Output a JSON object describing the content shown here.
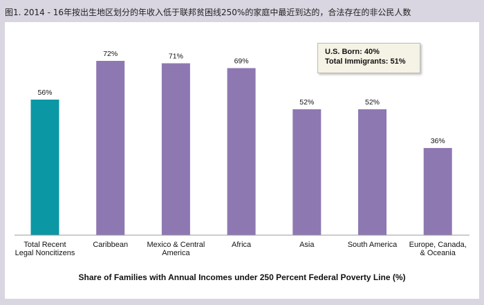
{
  "figure_title": "图1. 2014 - 16年按出生地区划分的年收入低于联邦贫困线250%的家庭中最近到达的，合法存在的非公民人数",
  "callout": {
    "line1": "U.S. Born: 40%",
    "line2": "Total Immigrants: 51%"
  },
  "chart_data": {
    "type": "bar",
    "title": "图1. 2014 - 16年按出生地区划分的年收入低于联邦贫困线250%的家庭中最近到达的，合法存在的非公民人数",
    "xlabel": "Share of Families with Annual Incomes under 250 Percent Federal Poverty Line (%)",
    "ylabel": "",
    "ylim": [
      0,
      80
    ],
    "categories": [
      [
        "Total Recent",
        "Legal Noncitizens"
      ],
      [
        "Caribbean"
      ],
      [
        "Mexico & Central",
        "America"
      ],
      [
        "Africa"
      ],
      [
        "Asia"
      ],
      [
        "South America"
      ],
      [
        "Europe, Canada,",
        "& Oceania"
      ]
    ],
    "values": [
      56,
      72,
      71,
      69,
      52,
      52,
      36
    ],
    "value_labels": [
      "56%",
      "72%",
      "71%",
      "69%",
      "52%",
      "52%",
      "36%"
    ],
    "colors": [
      "#0c97a5",
      "#8e78b2",
      "#8e78b2",
      "#8e78b2",
      "#8e78b2",
      "#8e78b2",
      "#8e78b2"
    ],
    "grid": false,
    "legend": "none"
  }
}
